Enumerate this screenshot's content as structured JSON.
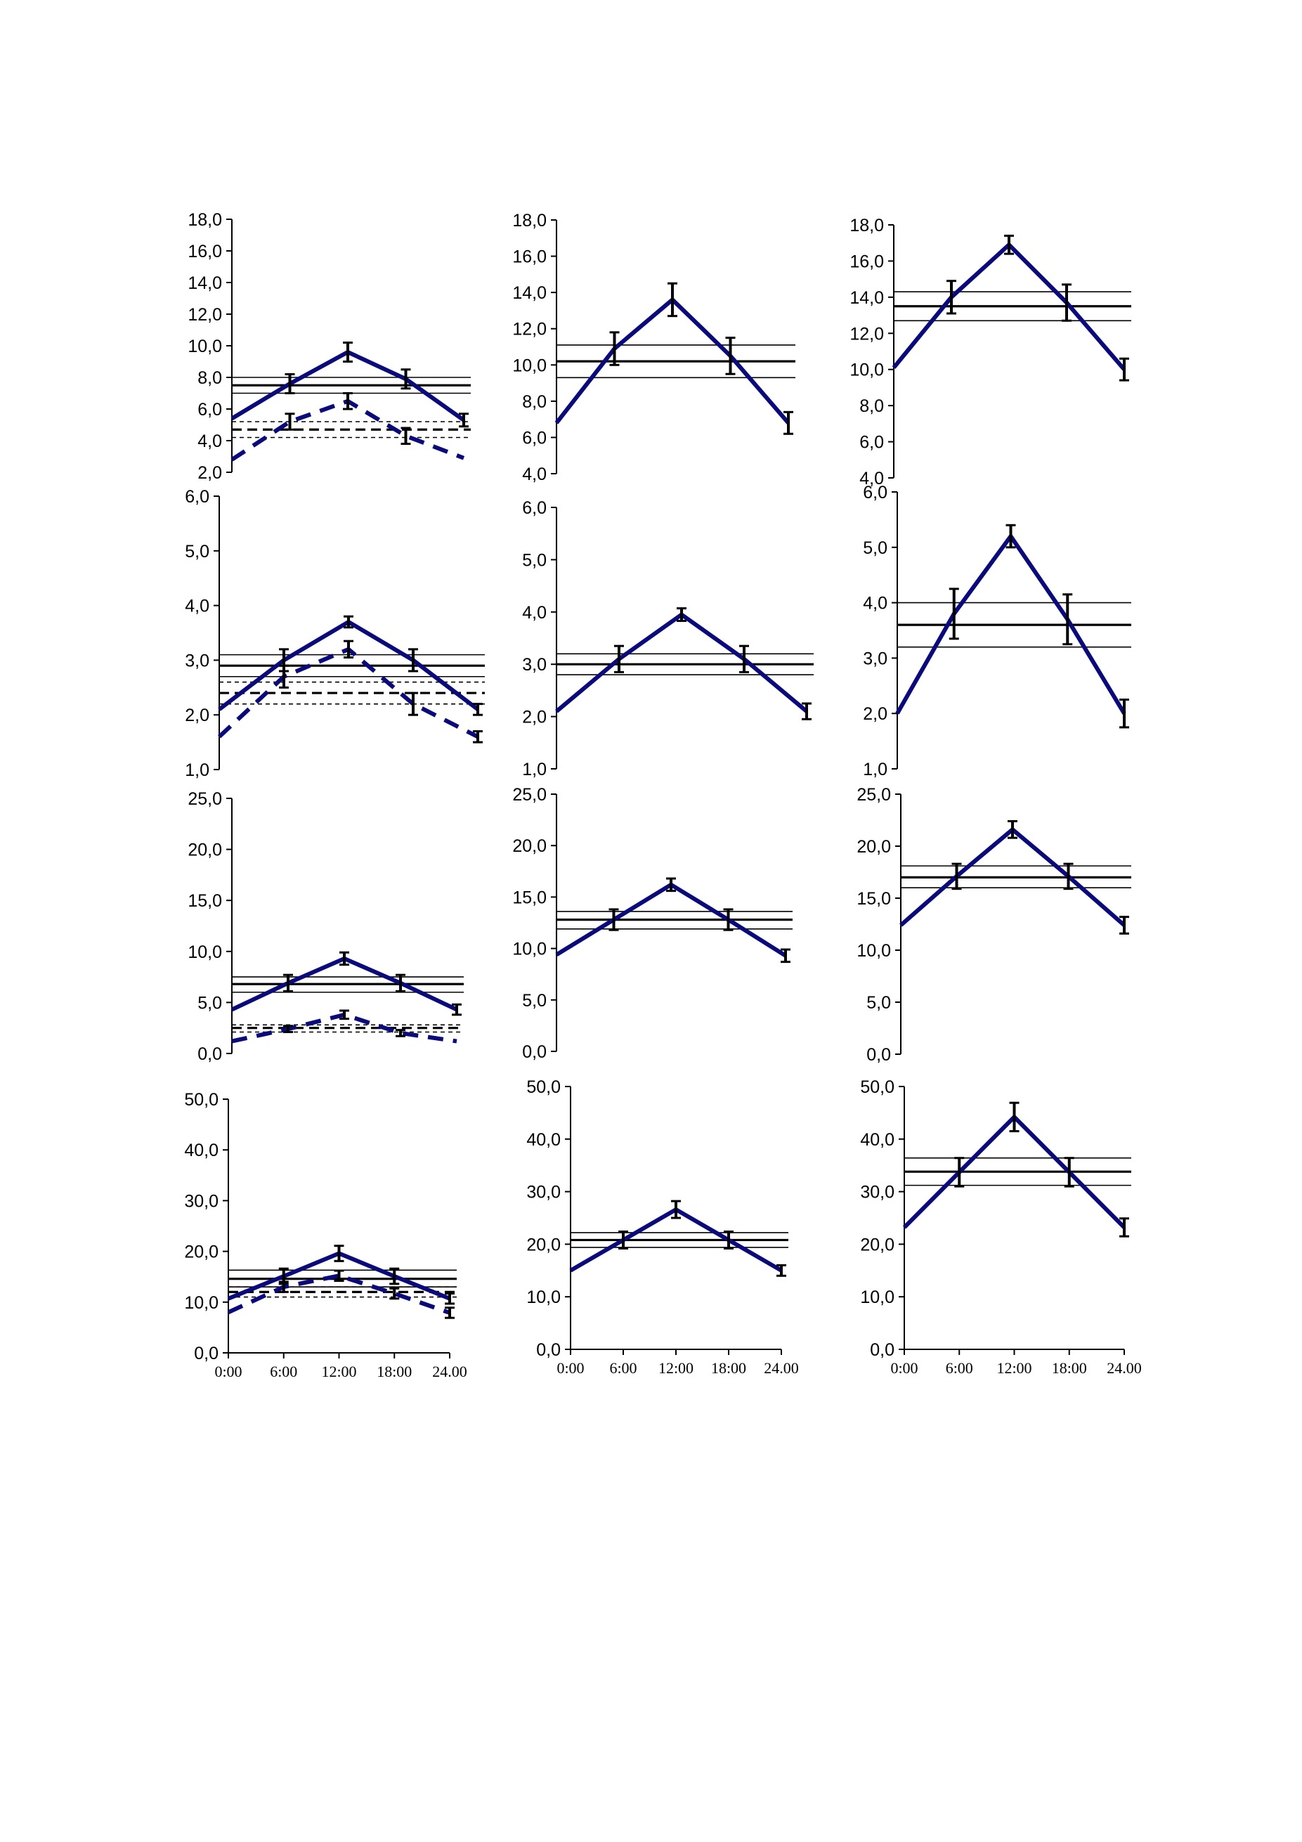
{
  "chart_data": [
    {
      "type": "line",
      "x": [
        "0:00",
        "6:00",
        "12:00",
        "18:00",
        "24.00"
      ],
      "ylim": [
        2,
        18
      ],
      "yticks": [
        "2,0",
        "4,0",
        "6,0",
        "8,0",
        "10,0",
        "12,0",
        "14,0",
        "16,0",
        "18,0"
      ],
      "series": [
        {
          "style": "solid",
          "values": [
            5.4,
            7.6,
            9.6,
            7.9,
            5.3
          ],
          "errors": [
            0,
            0.6,
            0.6,
            0.6,
            0.4
          ]
        },
        {
          "style": "dashed",
          "values": [
            2.8,
            5.2,
            6.5,
            4.3,
            2.9
          ],
          "errors": [
            0,
            0.5,
            0.5,
            0.5,
            0
          ]
        }
      ],
      "reference_lines": [
        {
          "style": "solid",
          "mean": 7.5,
          "band": [
            7.0,
            8.0
          ]
        },
        {
          "style": "dashed",
          "mean": 4.7,
          "band": [
            4.2,
            5.2
          ]
        }
      ]
    },
    {
      "type": "line",
      "x": [
        "0:00",
        "6:00",
        "12:00",
        "18:00",
        "24.00"
      ],
      "ylim": [
        4,
        18
      ],
      "yticks": [
        "4,0",
        "6,0",
        "8,0",
        "10,0",
        "12,0",
        "14,0",
        "16,0",
        "18,0"
      ],
      "series": [
        {
          "style": "solid",
          "values": [
            6.8,
            10.9,
            13.6,
            10.5,
            6.8
          ],
          "errors": [
            0,
            0.9,
            0.9,
            1.0,
            0.6
          ]
        }
      ],
      "reference_lines": [
        {
          "style": "solid",
          "mean": 10.2,
          "band": [
            9.3,
            11.1
          ]
        }
      ]
    },
    {
      "type": "line",
      "x": [
        "0:00",
        "6:00",
        "12:00",
        "18:00",
        "24.00"
      ],
      "ylim": [
        4,
        18
      ],
      "yticks": [
        "4,0",
        "6,0",
        "8,0",
        "10,0",
        "12,0",
        "14,0",
        "16,0",
        "18,0"
      ],
      "series": [
        {
          "style": "solid",
          "values": [
            10.1,
            14.0,
            16.9,
            13.7,
            10.0
          ],
          "errors": [
            0,
            0.9,
            0.5,
            1.0,
            0.6
          ]
        }
      ],
      "reference_lines": [
        {
          "style": "solid",
          "mean": 13.5,
          "band": [
            12.7,
            14.3
          ]
        }
      ]
    },
    {
      "type": "line",
      "x": [
        "0:00",
        "6:00",
        "12:00",
        "18:00",
        "24.00"
      ],
      "ylim": [
        1,
        6
      ],
      "yticks": [
        "1,0",
        "2,0",
        "3,0",
        "4,0",
        "5,0",
        "6,0"
      ],
      "series": [
        {
          "style": "solid",
          "values": [
            2.1,
            3.0,
            3.7,
            3.0,
            2.1
          ],
          "errors": [
            0,
            0.2,
            0.1,
            0.2,
            0.1
          ]
        },
        {
          "style": "dashed",
          "values": [
            1.6,
            2.7,
            3.2,
            2.2,
            1.6
          ],
          "errors": [
            0,
            0.2,
            0.15,
            0.2,
            0.1
          ]
        }
      ],
      "reference_lines": [
        {
          "style": "solid",
          "mean": 2.9,
          "band": [
            2.7,
            3.1
          ]
        },
        {
          "style": "dashed",
          "mean": 2.4,
          "band": [
            2.2,
            2.6
          ]
        }
      ]
    },
    {
      "type": "line",
      "x": [
        "0:00",
        "6:00",
        "12:00",
        "18:00",
        "24.00"
      ],
      "ylim": [
        1,
        6
      ],
      "yticks": [
        "1,0",
        "2,0",
        "3,0",
        "4,0",
        "5,0",
        "6,0"
      ],
      "series": [
        {
          "style": "solid",
          "values": [
            2.1,
            3.1,
            3.95,
            3.1,
            2.1
          ],
          "errors": [
            0,
            0.25,
            0.12,
            0.25,
            0.15
          ]
        }
      ],
      "reference_lines": [
        {
          "style": "solid",
          "mean": 3.0,
          "band": [
            2.8,
            3.2
          ]
        }
      ]
    },
    {
      "type": "line",
      "x": [
        "0:00",
        "6:00",
        "12:00",
        "18:00",
        "24.00"
      ],
      "ylim": [
        1,
        6
      ],
      "yticks": [
        "1,0",
        "2,0",
        "3,0",
        "4,0",
        "5,0",
        "6,0"
      ],
      "series": [
        {
          "style": "solid",
          "values": [
            2.0,
            3.8,
            5.2,
            3.7,
            2.0
          ],
          "errors": [
            0,
            0.45,
            0.2,
            0.45,
            0.25
          ]
        }
      ],
      "reference_lines": [
        {
          "style": "solid",
          "mean": 3.6,
          "band": [
            3.2,
            4.0
          ]
        }
      ]
    },
    {
      "type": "line",
      "x": [
        "0:00",
        "6:00",
        "12:00",
        "18:00",
        "24.00"
      ],
      "ylim": [
        0,
        25
      ],
      "yticks": [
        "0,0",
        "5,0",
        "10,0",
        "15,0",
        "20,0",
        "25,0"
      ],
      "series": [
        {
          "style": "solid",
          "values": [
            4.3,
            6.9,
            9.3,
            6.9,
            4.3
          ],
          "errors": [
            0,
            0.8,
            0.6,
            0.8,
            0.5
          ]
        },
        {
          "style": "dashed",
          "values": [
            1.2,
            2.4,
            3.8,
            2.0,
            1.2
          ],
          "errors": [
            0,
            0.3,
            0.4,
            0.3,
            0
          ]
        }
      ],
      "reference_lines": [
        {
          "style": "solid",
          "mean": 6.8,
          "band": [
            6.0,
            7.5
          ]
        },
        {
          "style": "dashed",
          "mean": 2.5,
          "band": [
            2.1,
            2.8
          ]
        }
      ]
    },
    {
      "type": "line",
      "x": [
        "0:00",
        "6:00",
        "12:00",
        "18:00",
        "24.00"
      ],
      "ylim": [
        0,
        25
      ],
      "yticks": [
        "0,0",
        "5,0",
        "10,0",
        "15,0",
        "20,0",
        "25,0"
      ],
      "series": [
        {
          "style": "solid",
          "values": [
            9.4,
            12.8,
            16.2,
            12.8,
            9.3
          ],
          "errors": [
            0,
            1.0,
            0.6,
            1.0,
            0.6
          ]
        }
      ],
      "reference_lines": [
        {
          "style": "solid",
          "mean": 12.8,
          "band": [
            11.9,
            13.6
          ]
        }
      ]
    },
    {
      "type": "line",
      "x": [
        "0:00",
        "6:00",
        "12:00",
        "18:00",
        "24.00"
      ],
      "ylim": [
        0,
        25
      ],
      "yticks": [
        "0,0",
        "5,0",
        "10,0",
        "15,0",
        "20,0",
        "25,0"
      ],
      "series": [
        {
          "style": "solid",
          "values": [
            12.4,
            17.1,
            21.6,
            17.1,
            12.4
          ],
          "errors": [
            0,
            1.2,
            0.8,
            1.2,
            0.8
          ]
        }
      ],
      "reference_lines": [
        {
          "style": "solid",
          "mean": 17.0,
          "band": [
            16.0,
            18.1
          ]
        }
      ]
    },
    {
      "type": "line",
      "x": [
        "0:00",
        "6:00",
        "12:00",
        "18:00",
        "24.00"
      ],
      "ylim": [
        0,
        50
      ],
      "yticks": [
        "0,0",
        "10,0",
        "20,0",
        "30,0",
        "40,0",
        "50,0"
      ],
      "series": [
        {
          "style": "solid",
          "values": [
            10.7,
            15.1,
            19.6,
            15.1,
            10.7
          ],
          "errors": [
            0,
            1.5,
            1.5,
            1.5,
            1.0
          ]
        },
        {
          "style": "dashed",
          "values": [
            8.0,
            13.0,
            15.2,
            11.7,
            7.9
          ],
          "errors": [
            0,
            1.0,
            1.0,
            1.0,
            1.0
          ]
        }
      ],
      "reference_lines": [
        {
          "style": "solid",
          "mean": 14.6,
          "band": [
            13.0,
            16.3
          ]
        },
        {
          "style": "dashed",
          "mean": 12.0,
          "band": [
            11.0,
            13.0
          ]
        }
      ]
    },
    {
      "type": "line",
      "x": [
        "0:00",
        "6:00",
        "12:00",
        "18:00",
        "24.00"
      ],
      "ylim": [
        0,
        50
      ],
      "yticks": [
        "0,0",
        "10,0",
        "20,0",
        "30,0",
        "40,0",
        "50,0"
      ],
      "series": [
        {
          "style": "solid",
          "values": [
            15.0,
            20.8,
            26.6,
            20.8,
            15.0
          ],
          "errors": [
            0,
            1.6,
            1.6,
            1.6,
            1.0
          ]
        }
      ],
      "reference_lines": [
        {
          "style": "solid",
          "mean": 20.8,
          "band": [
            19.4,
            22.2
          ]
        }
      ]
    },
    {
      "type": "line",
      "x": [
        "0:00",
        "6:00",
        "12:00",
        "18:00",
        "24.00"
      ],
      "ylim": [
        0,
        50
      ],
      "yticks": [
        "0,0",
        "10,0",
        "20,0",
        "30,0",
        "40,0",
        "50,0"
      ],
      "series": [
        {
          "style": "solid",
          "values": [
            23.2,
            33.7,
            44.2,
            33.7,
            23.2
          ],
          "errors": [
            0,
            2.7,
            2.7,
            2.7,
            1.7
          ]
        }
      ],
      "reference_lines": [
        {
          "style": "solid",
          "mean": 33.8,
          "band": [
            31.2,
            36.4
          ]
        }
      ]
    }
  ],
  "colors": {
    "series": "#0a0a7a",
    "reference": "#000000",
    "error_bar": "#000000",
    "axis": "#000000"
  }
}
